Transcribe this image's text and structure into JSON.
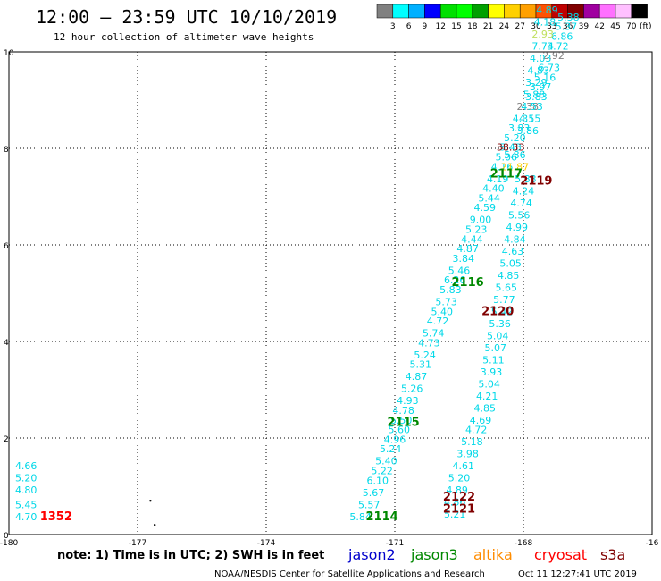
{
  "header": {
    "title": "12:00 – 23:59 UTC 10/10/2019",
    "subtitle": "12 hour collection of altimeter wave heights"
  },
  "color_scale": {
    "colors": [
      "#808080",
      "#00ffff",
      "#00b0ff",
      "#0000ff",
      "#00e000",
      "#00ff00",
      "#00a000",
      "#ffff00",
      "#ffd000",
      "#ffa000",
      "#ff5000",
      "#c00000",
      "#800000",
      "#a000a0",
      "#ff70ff",
      "#ffc0ff",
      "#000000"
    ],
    "labels": [
      "3",
      "6",
      "9",
      "12",
      "15",
      "18",
      "21",
      "24",
      "27",
      "30",
      "33",
      "36",
      "39",
      "42",
      "45",
      "70"
    ],
    "unit": "(ft)"
  },
  "chart_data": {
    "type": "scatter",
    "title": "12:00 – 23:59 UTC 10/10/2019",
    "subtitle": "12 hour collection of altimeter wave heights",
    "xlim": [
      -180,
      -165
    ],
    "ylim": [
      0,
      10
    ],
    "x_ticks": [
      "-180",
      "-177",
      "-174",
      "-171",
      "-168",
      "-16"
    ],
    "y_ticks": [
      "0",
      "2",
      "4",
      "6",
      "8",
      "10"
    ],
    "grid": true,
    "series": [
      {
        "name": "jason2",
        "color": "#0000cc",
        "points": []
      },
      {
        "name": "jason3",
        "color": "#008800",
        "points": []
      },
      {
        "name": "altika",
        "color": "#ff8c00",
        "points": []
      },
      {
        "name": "cryosat",
        "color": "#ff0000",
        "points": []
      },
      {
        "name": "s3a",
        "color": "#800000",
        "points": []
      }
    ],
    "swh_labels": [
      {
        "x": -179.6,
        "y": 0.3,
        "v": "4.70",
        "c": "#00d8e8"
      },
      {
        "x": -179.6,
        "y": 0.55,
        "v": "5.45",
        "c": "#00d8e8"
      },
      {
        "x": -179.6,
        "y": 0.85,
        "v": "4.80",
        "c": "#00d8e8"
      },
      {
        "x": -179.6,
        "y": 1.1,
        "v": "5.20",
        "c": "#00d8e8"
      },
      {
        "x": -179.6,
        "y": 1.35,
        "v": "4.66",
        "c": "#00d8e8"
      },
      {
        "x": -171.8,
        "y": 0.3,
        "v": "5.84",
        "c": "#00d8e8"
      },
      {
        "x": -171.6,
        "y": 0.55,
        "v": "5.57",
        "c": "#00d8e8"
      },
      {
        "x": -171.5,
        "y": 0.8,
        "v": "5.67",
        "c": "#00d8e8"
      },
      {
        "x": -171.4,
        "y": 1.05,
        "v": "6.10",
        "c": "#00d8e8"
      },
      {
        "x": -171.3,
        "y": 1.25,
        "v": "5.22",
        "c": "#00d8e8"
      },
      {
        "x": -171.2,
        "y": 1.45,
        "v": "5.40",
        "c": "#00d8e8"
      },
      {
        "x": -171.1,
        "y": 1.7,
        "v": "5.24",
        "c": "#00d8e8"
      },
      {
        "x": -171.0,
        "y": 1.9,
        "v": "4.96",
        "c": "#00d8e8"
      },
      {
        "x": -170.9,
        "y": 2.1,
        "v": "5.60",
        "c": "#00d8e8"
      },
      {
        "x": -170.85,
        "y": 2.3,
        "v": "5.50",
        "c": "#00d8e8"
      },
      {
        "x": -170.8,
        "y": 2.5,
        "v": "4.78",
        "c": "#00d8e8"
      },
      {
        "x": -170.7,
        "y": 2.7,
        "v": "4.93",
        "c": "#00d8e8"
      },
      {
        "x": -170.6,
        "y": 2.95,
        "v": "5.26",
        "c": "#00d8e8"
      },
      {
        "x": -170.5,
        "y": 3.2,
        "v": "4.87",
        "c": "#00d8e8"
      },
      {
        "x": -170.4,
        "y": 3.45,
        "v": "5.31",
        "c": "#00d8e8"
      },
      {
        "x": -170.3,
        "y": 3.65,
        "v": "5.24",
        "c": "#00d8e8"
      },
      {
        "x": -170.2,
        "y": 3.9,
        "v": "4.73",
        "c": "#00d8e8"
      },
      {
        "x": -170.1,
        "y": 4.1,
        "v": "5.74",
        "c": "#00d8e8"
      },
      {
        "x": -170.0,
        "y": 4.35,
        "v": "4.72",
        "c": "#00d8e8"
      },
      {
        "x": -169.9,
        "y": 4.55,
        "v": "5.40",
        "c": "#00d8e8"
      },
      {
        "x": -169.8,
        "y": 4.75,
        "v": "5.73",
        "c": "#00d8e8"
      },
      {
        "x": -169.7,
        "y": 5.0,
        "v": "5.83",
        "c": "#00d8e8"
      },
      {
        "x": -169.6,
        "y": 5.2,
        "v": "6.26",
        "c": "#00d8e8"
      },
      {
        "x": -169.5,
        "y": 5.4,
        "v": "5.46",
        "c": "#00d8e8"
      },
      {
        "x": -169.4,
        "y": 5.65,
        "v": "3.84",
        "c": "#00d8e8"
      },
      {
        "x": -169.3,
        "y": 5.85,
        "v": "4.87",
        "c": "#00d8e8"
      },
      {
        "x": -169.2,
        "y": 6.05,
        "v": "4.44",
        "c": "#00d8e8"
      },
      {
        "x": -169.1,
        "y": 6.25,
        "v": "5.23",
        "c": "#00d8e8"
      },
      {
        "x": -169.0,
        "y": 6.45,
        "v": "9.00",
        "c": "#00d8e8"
      },
      {
        "x": -168.9,
        "y": 6.7,
        "v": "4.59",
        "c": "#00d8e8"
      },
      {
        "x": -168.8,
        "y": 6.9,
        "v": "5.44",
        "c": "#00d8e8"
      },
      {
        "x": -168.7,
        "y": 7.1,
        "v": "4.40",
        "c": "#00d8e8"
      },
      {
        "x": -168.6,
        "y": 7.3,
        "v": "4.19",
        "c": "#00d8e8"
      },
      {
        "x": -168.5,
        "y": 7.55,
        "v": "4.16",
        "c": "#00d8e8"
      },
      {
        "x": -168.4,
        "y": 7.75,
        "v": "5.06",
        "c": "#00d8e8"
      },
      {
        "x": -168.3,
        "y": 7.95,
        "v": "5.43",
        "c": "#00d8e8"
      },
      {
        "x": -168.2,
        "y": 8.15,
        "v": "5.20",
        "c": "#00d8e8"
      },
      {
        "x": -168.1,
        "y": 8.35,
        "v": "3.83",
        "c": "#00d8e8"
      },
      {
        "x": -168.0,
        "y": 8.55,
        "v": "4.31",
        "c": "#00d8e8"
      },
      {
        "x": -167.9,
        "y": 8.8,
        "v": "2.38",
        "c": "#808080"
      },
      {
        "x": -167.7,
        "y": 9.0,
        "v": "3.83",
        "c": "#00d8e8"
      },
      {
        "x": -167.6,
        "y": 9.2,
        "v": "3.97",
        "c": "#00d8e8"
      },
      {
        "x": -167.5,
        "y": 9.4,
        "v": "5.16",
        "c": "#00d8e8"
      },
      {
        "x": -167.4,
        "y": 9.6,
        "v": "6.73",
        "c": "#00d8e8"
      },
      {
        "x": -167.3,
        "y": 9.85,
        "v": "2.92",
        "c": "#808080"
      },
      {
        "x": -167.2,
        "y": 10.05,
        "v": "3.72",
        "c": "#00d8e8"
      },
      {
        "x": -167.1,
        "y": 10.25,
        "v": "6.86",
        "c": "#00d8e8"
      },
      {
        "x": -167.0,
        "y": 10.45,
        "v": "5.37",
        "c": "#00d8e8"
      },
      {
        "x": -166.95,
        "y": 10.65,
        "v": "5.38",
        "c": "#00d8e8"
      },
      {
        "x": -169.6,
        "y": 0.35,
        "v": "5.21",
        "c": "#00d8e8"
      },
      {
        "x": -169.6,
        "y": 0.6,
        "v": "4.86",
        "c": "#00d8e8"
      },
      {
        "x": -169.55,
        "y": 0.85,
        "v": "4.89",
        "c": "#00d8e8"
      },
      {
        "x": -169.5,
        "y": 1.1,
        "v": "5.20",
        "c": "#00d8e8"
      },
      {
        "x": -169.4,
        "y": 1.35,
        "v": "4.61",
        "c": "#00d8e8"
      },
      {
        "x": -169.3,
        "y": 1.6,
        "v": "3.98",
        "c": "#00d8e8"
      },
      {
        "x": -169.2,
        "y": 1.85,
        "v": "5.18",
        "c": "#00d8e8"
      },
      {
        "x": -169.1,
        "y": 2.1,
        "v": "4.72",
        "c": "#00d8e8"
      },
      {
        "x": -169.0,
        "y": 2.3,
        "v": "4.69",
        "c": "#00d8e8"
      },
      {
        "x": -168.9,
        "y": 2.55,
        "v": "4.85",
        "c": "#00d8e8"
      },
      {
        "x": -168.85,
        "y": 2.8,
        "v": "4.21",
        "c": "#00d8e8"
      },
      {
        "x": -168.8,
        "y": 3.05,
        "v": "5.04",
        "c": "#00d8e8"
      },
      {
        "x": -168.75,
        "y": 3.3,
        "v": "3.93",
        "c": "#00d8e8"
      },
      {
        "x": -168.7,
        "y": 3.55,
        "v": "5.11",
        "c": "#00d8e8"
      },
      {
        "x": -168.65,
        "y": 3.8,
        "v": "5.07",
        "c": "#00d8e8"
      },
      {
        "x": -168.6,
        "y": 4.05,
        "v": "5.04",
        "c": "#00d8e8"
      },
      {
        "x": -168.55,
        "y": 4.3,
        "v": "5.36",
        "c": "#00d8e8"
      },
      {
        "x": -168.5,
        "y": 4.55,
        "v": "5.42",
        "c": "#00d8e8"
      },
      {
        "x": -168.45,
        "y": 4.8,
        "v": "5.77",
        "c": "#00d8e8"
      },
      {
        "x": -168.4,
        "y": 5.05,
        "v": "5.65",
        "c": "#00d8e8"
      },
      {
        "x": -168.35,
        "y": 5.3,
        "v": "4.85",
        "c": "#00d8e8"
      },
      {
        "x": -168.3,
        "y": 5.55,
        "v": "5.05",
        "c": "#00d8e8"
      },
      {
        "x": -168.25,
        "y": 5.8,
        "v": "4.63",
        "c": "#00d8e8"
      },
      {
        "x": -168.2,
        "y": 6.05,
        "v": "4.84",
        "c": "#00d8e8"
      },
      {
        "x": -168.15,
        "y": 6.3,
        "v": "4.99",
        "c": "#00d8e8"
      },
      {
        "x": -168.1,
        "y": 6.55,
        "v": "5.56",
        "c": "#00d8e8"
      },
      {
        "x": -168.05,
        "y": 6.8,
        "v": "4.74",
        "c": "#00d8e8"
      },
      {
        "x": -168.0,
        "y": 7.05,
        "v": "4.24",
        "c": "#00d8e8"
      },
      {
        "x": -167.95,
        "y": 7.3,
        "v": "5.83",
        "c": "#00d8e8"
      },
      {
        "x": -168.2,
        "y": 7.55,
        "v": "21.87",
        "c": "#ffd000"
      },
      {
        "x": -168.2,
        "y": 7.8,
        "v": "5.86",
        "c": "#00d8e8"
      },
      {
        "x": -168.3,
        "y": 7.95,
        "v": "38.33",
        "c": "#800000"
      },
      {
        "x": -167.9,
        "y": 8.3,
        "v": "3.86",
        "c": "#00d8e8"
      },
      {
        "x": -167.85,
        "y": 8.55,
        "v": "4.55",
        "c": "#00d8e8"
      },
      {
        "x": -167.8,
        "y": 8.8,
        "v": "4.53",
        "c": "#00d8e8"
      },
      {
        "x": -167.75,
        "y": 9.05,
        "v": "5.88",
        "c": "#00d8e8"
      },
      {
        "x": -167.7,
        "y": 9.3,
        "v": "3.29",
        "c": "#00d8e8"
      },
      {
        "x": -167.65,
        "y": 9.55,
        "v": "4.83",
        "c": "#00d8e8"
      },
      {
        "x": -167.6,
        "y": 9.8,
        "v": "4.03",
        "c": "#00d8e8"
      },
      {
        "x": -167.55,
        "y": 10.05,
        "v": "7.74",
        "c": "#00d8e8"
      },
      {
        "x": -167.55,
        "y": 10.3,
        "v": "2.93",
        "c": "#c0e060"
      },
      {
        "x": -167.5,
        "y": 10.55,
        "v": "4.18",
        "c": "#00d8e8"
      },
      {
        "x": -167.45,
        "y": 10.8,
        "v": "4.89",
        "c": "#00d8e8"
      }
    ],
    "time_labels": [
      {
        "x": -178.9,
        "y": 0.3,
        "v": "1352",
        "c": "#ff0000"
      },
      {
        "x": -171.3,
        "y": 0.3,
        "v": "2114",
        "c": "#008800"
      },
      {
        "x": -170.8,
        "y": 2.25,
        "v": "2115",
        "c": "#008800"
      },
      {
        "x": -169.3,
        "y": 5.15,
        "v": "2116",
        "c": "#008800"
      },
      {
        "x": -168.4,
        "y": 7.4,
        "v": "2117",
        "c": "#008800"
      },
      {
        "x": -167.7,
        "y": 7.25,
        "v": "2119",
        "c": "#800000"
      },
      {
        "x": -168.6,
        "y": 4.55,
        "v": "2120",
        "c": "#800000"
      },
      {
        "x": -169.5,
        "y": 0.45,
        "v": "2121",
        "c": "#800000"
      },
      {
        "x": -169.5,
        "y": 0.7,
        "v": "2122",
        "c": "#800000"
      }
    ],
    "markers": [
      {
        "x": -176.7,
        "y": 0.7
      },
      {
        "x": -176.6,
        "y": 0.2
      }
    ]
  },
  "footer": {
    "note": "note:  1) Time is in UTC; 2) SWH is in feet",
    "legend": [
      {
        "label": "jason2",
        "color": "#0000cc"
      },
      {
        "label": "jason3",
        "color": "#008800"
      },
      {
        "label": "altika",
        "color": "#ff8c00"
      },
      {
        "label": "cryosat",
        "color": "#ff0000"
      },
      {
        "label": "s3a",
        "color": "#800000"
      }
    ],
    "credit": "NOAA/NESDIS Center for Satellite Applications and Research",
    "timestamp": "Oct 11 12:27:41 UTC 2019"
  }
}
